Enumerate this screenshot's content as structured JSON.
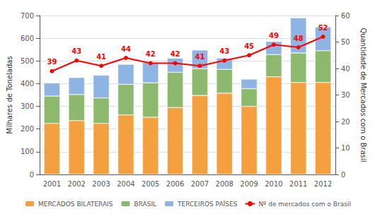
{
  "chart_data": {
    "type": "bar",
    "categories": [
      "2001",
      "2002",
      "2003",
      "2004",
      "2005",
      "2006",
      "2007",
      "2008",
      "2009",
      "2010",
      "2011",
      "2012"
    ],
    "ylabel": "Milhares de Toneladas",
    "y2label": "Quantidade de Mercados com o Brasil",
    "ylim": [
      0,
      700
    ],
    "yticks": [
      0,
      100,
      200,
      300,
      400,
      500,
      600,
      700
    ],
    "y2lim": [
      0,
      60
    ],
    "y2ticks": [
      0,
      10,
      20,
      30,
      40,
      50,
      60
    ],
    "stacked": true,
    "grid": true,
    "legend": "bottom",
    "series": [
      {
        "name": "MERCADOS BILATERAIS",
        "type": "bar",
        "color": "#F5A040",
        "values": [
          225,
          237,
          225,
          262,
          252,
          295,
          348,
          358,
          300,
          430,
          405,
          405
        ]
      },
      {
        "name": "BRASIL",
        "type": "bar",
        "color": "#8DB96E",
        "values": [
          120,
          115,
          112,
          135,
          152,
          155,
          118,
          105,
          78,
          98,
          130,
          140
        ]
      },
      {
        "name": "TERCEIROS PAÍSES",
        "type": "bar",
        "color": "#8EB4E3",
        "values": [
          58,
          75,
          100,
          88,
          90,
          62,
          82,
          50,
          42,
          58,
          155,
          105
        ]
      },
      {
        "name": "Nº de mercados com o Brasil",
        "type": "line",
        "axis": "y2",
        "color": "#FF0000",
        "marker": "circle",
        "data_labels": true,
        "values": [
          39,
          43,
          41,
          44,
          42,
          42,
          41,
          43,
          45,
          49,
          48,
          52
        ]
      }
    ]
  }
}
